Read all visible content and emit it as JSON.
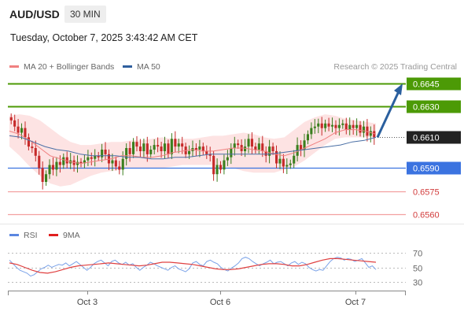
{
  "header": {
    "symbol": "AUD/USD",
    "timeframe": "30 MIN"
  },
  "date_line": "Tuesday, October 7, 2025 3:43:42 AM CET",
  "legend": {
    "ma20_label": "MA 20 + Bollinger Bands",
    "ma50_label": "MA 50",
    "credit": "Research © 2025 Trading Central"
  },
  "rsi_legend": {
    "rsi_label": "RSI",
    "ma_label": "9MA"
  },
  "colors": {
    "resistance": "#4c9a06",
    "support": "#3b73e0",
    "target_line": "#f2a0a0",
    "candle_up": "#3a7f1e",
    "candle_down": "#c62a2a",
    "ma20": "#f08080",
    "ma50": "#4a6fa5",
    "bands": "#fde0e0",
    "arrow": "#2a5f9e",
    "rsi": "#7aa2e8",
    "rsi_ma": "#e04040",
    "current": "#222222"
  },
  "chart_data": {
    "type": "candlestick",
    "x_ticks": [
      "Oct 3",
      "Oct 6",
      "Oct 7"
    ],
    "ylim": [
      0.6547,
      0.6655
    ],
    "levels": [
      {
        "value": 0.6645,
        "label": "0.6645",
        "kind": "resistance"
      },
      {
        "value": 0.663,
        "label": "0.6630",
        "kind": "resistance"
      },
      {
        "value": 0.661,
        "label": "0.6610",
        "kind": "current"
      },
      {
        "value": 0.659,
        "label": "0.6590",
        "kind": "support"
      },
      {
        "value": 0.6575,
        "label": "0.6575",
        "kind": "target"
      },
      {
        "value": 0.656,
        "label": "0.6560",
        "kind": "target"
      }
    ],
    "projection": {
      "from": 0.661,
      "to": 0.6645
    },
    "closes": [
      0.6621,
      0.6617,
      0.6613,
      0.6616,
      0.661,
      0.6604,
      0.6603,
      0.6598,
      0.659,
      0.6581,
      0.6586,
      0.6592,
      0.6589,
      0.6594,
      0.6592,
      0.6597,
      0.6593,
      0.6595,
      0.6592,
      0.6594,
      0.6593,
      0.6595,
      0.6597,
      0.6596,
      0.6598,
      0.6597,
      0.6602,
      0.6599,
      0.6593,
      0.6595,
      0.6591,
      0.6589,
      0.6596,
      0.6603,
      0.6599,
      0.6607,
      0.6604,
      0.6601,
      0.6606,
      0.6599,
      0.6602,
      0.6605,
      0.6604,
      0.6601,
      0.6606,
      0.6599,
      0.6609,
      0.6604,
      0.6606,
      0.6604,
      0.6599,
      0.6601,
      0.6603,
      0.6602,
      0.6604,
      0.6601,
      0.6599,
      0.6598,
      0.6586,
      0.6592,
      0.6589,
      0.6595,
      0.6597,
      0.6603,
      0.6606,
      0.6605,
      0.6601,
      0.6604,
      0.6609,
      0.6604,
      0.6602,
      0.6606,
      0.6601,
      0.6598,
      0.6604,
      0.6601,
      0.6593,
      0.6596,
      0.6591,
      0.6592,
      0.6593,
      0.6598,
      0.6605,
      0.6602,
      0.6608,
      0.6612,
      0.6616,
      0.6617,
      0.6619,
      0.6616,
      0.6619,
      0.6617,
      0.6618,
      0.6616,
      0.6618,
      0.6619,
      0.6615,
      0.6618,
      0.6616,
      0.6618,
      0.6613,
      0.6617,
      0.6611,
      0.6614,
      0.661
    ],
    "ma20": [
      0.6614,
      0.6612,
      0.6608,
      0.6603,
      0.6598,
      0.6596,
      0.6594,
      0.6593,
      0.6594,
      0.6595,
      0.6596,
      0.6598,
      0.6598,
      0.6597,
      0.6597,
      0.6598,
      0.66,
      0.6601,
      0.6602,
      0.6601,
      0.6601,
      0.6602,
      0.6603,
      0.6603,
      0.6602,
      0.6601,
      0.6599,
      0.6598,
      0.66,
      0.6603,
      0.6606,
      0.6609,
      0.6613,
      0.6615,
      0.6615,
      0.6614,
      0.6612
    ],
    "ma50": [
      0.6611,
      0.661,
      0.6607,
      0.6604,
      0.6602,
      0.6601,
      0.6599,
      0.6598,
      0.6598,
      0.6598,
      0.6597,
      0.6597,
      0.6596,
      0.6596,
      0.6597,
      0.6597,
      0.6598,
      0.6599,
      0.6599,
      0.6599,
      0.6599,
      0.6599,
      0.6599,
      0.66,
      0.6601,
      0.6602,
      0.6603,
      0.6604,
      0.6605,
      0.6607,
      0.6608,
      0.661
    ],
    "bb_upper": [
      0.6624,
      0.6625,
      0.6624,
      0.6621,
      0.6616,
      0.6611,
      0.6607,
      0.6605,
      0.6605,
      0.6606,
      0.6607,
      0.6607,
      0.6608,
      0.6608,
      0.6609,
      0.661,
      0.6609,
      0.6609,
      0.6609,
      0.661,
      0.6611,
      0.6611,
      0.6612,
      0.6613,
      0.6612,
      0.661,
      0.6609,
      0.661,
      0.6615,
      0.662,
      0.6623,
      0.6625,
      0.6624,
      0.6622,
      0.6621,
      0.662,
      0.6619
    ],
    "bb_lower": [
      0.6604,
      0.6598,
      0.6591,
      0.6585,
      0.658,
      0.6578,
      0.6579,
      0.6582,
      0.6585,
      0.6587,
      0.6588,
      0.6589,
      0.659,
      0.659,
      0.659,
      0.659,
      0.6591,
      0.6592,
      0.6592,
      0.6592,
      0.6592,
      0.6591,
      0.659,
      0.6588,
      0.6587,
      0.6587,
      0.6587,
      0.6589,
      0.6591,
      0.6595,
      0.66,
      0.6605,
      0.6609,
      0.661,
      0.661,
      0.661,
      0.661
    ],
    "rsi": {
      "ylim": [
        20,
        80
      ],
      "ticks": [
        70,
        50,
        30
      ],
      "rsi_values": [
        60,
        55,
        50,
        46,
        44,
        42,
        38,
        40,
        44,
        48,
        50,
        53,
        50,
        52,
        54,
        53,
        56,
        52,
        55,
        58,
        54,
        50,
        46,
        50,
        55,
        58,
        60,
        56,
        52,
        58,
        60,
        56,
        54,
        57,
        53,
        55,
        50,
        46,
        50,
        53,
        57,
        55,
        52,
        50,
        48,
        46,
        50,
        52,
        48,
        46,
        44,
        48,
        56,
        58,
        54,
        52,
        58,
        60,
        57,
        55,
        50,
        47,
        45,
        49,
        52,
        56,
        62,
        64,
        62,
        58,
        55,
        52,
        55,
        57,
        60,
        55,
        57,
        58,
        55,
        52,
        56,
        58,
        54,
        57,
        55,
        50,
        47,
        45,
        47,
        46,
        52,
        58,
        62,
        64,
        63,
        60,
        62,
        61,
        58,
        60,
        62,
        56,
        50,
        52,
        47
      ],
      "ma_values": [
        56,
        54,
        50,
        46,
        43,
        42,
        44,
        47,
        50,
        52,
        53,
        54,
        55,
        56,
        55,
        54,
        53,
        52,
        53,
        55,
        57,
        57,
        56,
        55,
        54,
        52,
        50,
        48,
        47,
        47,
        48,
        50,
        52,
        54,
        55,
        55,
        54,
        52,
        52,
        54,
        57,
        60,
        62,
        62,
        61,
        60,
        59,
        58,
        57
      ]
    }
  }
}
